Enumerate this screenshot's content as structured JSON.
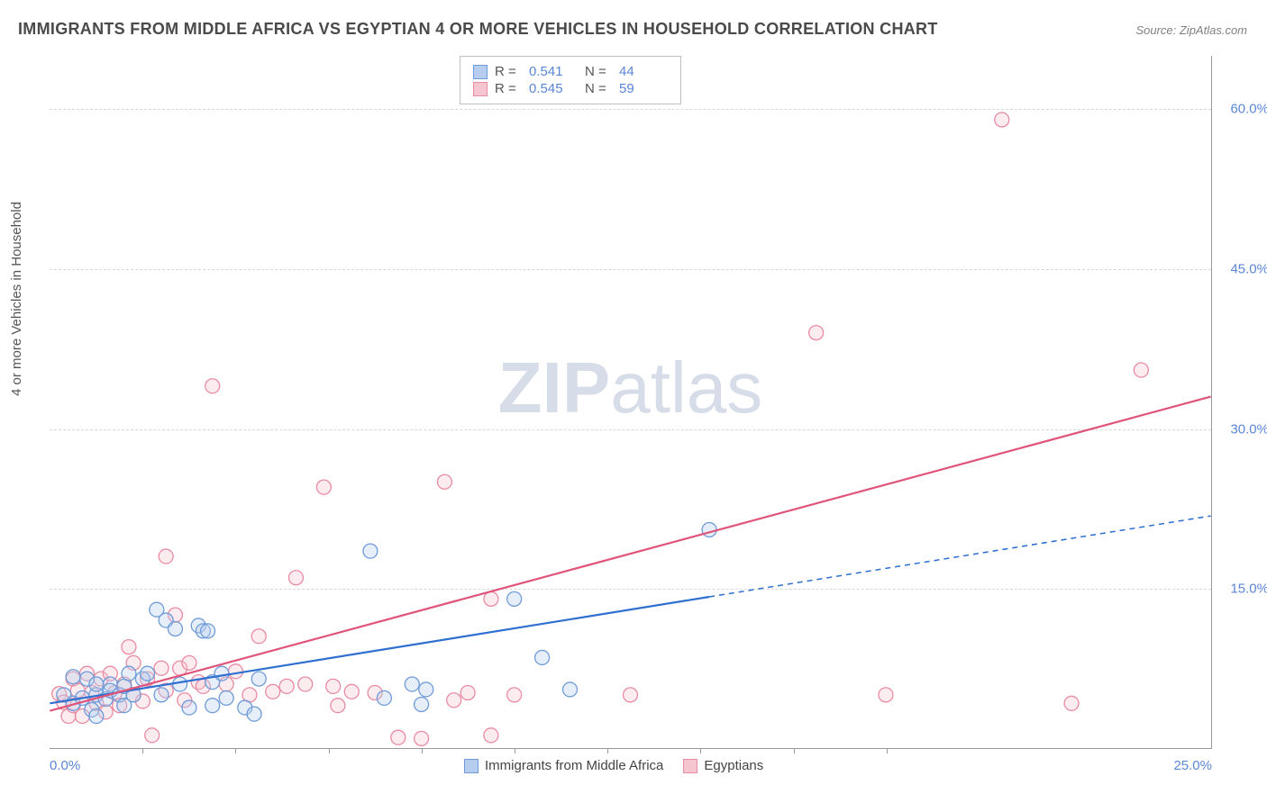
{
  "title": "IMMIGRANTS FROM MIDDLE AFRICA VS EGYPTIAN 4 OR MORE VEHICLES IN HOUSEHOLD CORRELATION CHART",
  "source": "Source: ZipAtlas.com",
  "watermark": {
    "zip": "ZIP",
    "atlas": "atlas"
  },
  "chart": {
    "type": "scatter-with-regression",
    "background_color": "#ffffff",
    "grid_color": "#d8d8d8",
    "axis_color": "#999999",
    "tick_label_color": "#5a87d6",
    "axis_title_color": "#555555",
    "axis_title_fontsize": 15,
    "tick_label_fontsize": 15,
    "xlim": [
      0,
      25
    ],
    "ylim": [
      0,
      65
    ],
    "x_ticks": [
      0.0,
      25.0
    ],
    "x_tick_labels": [
      "0.0%",
      "25.0%"
    ],
    "x_minor_ticks": [
      2,
      4,
      6,
      8,
      10,
      12,
      14,
      16,
      18
    ],
    "y_ticks": [
      15.0,
      30.0,
      45.0,
      60.0
    ],
    "y_tick_labels": [
      "15.0%",
      "30.0%",
      "45.0%",
      "60.0%"
    ],
    "y_gridlines_dashed": true,
    "y_axis_title": "4 or more Vehicles in Household",
    "marker_radius": 8,
    "marker_fill_opacity": 0.35,
    "marker_stroke_width": 1.3,
    "series": [
      {
        "name": "Immigrants from Middle Africa",
        "color_fill": "#b7cdef",
        "color_stroke": "#6f9bd8",
        "legend_swatch_fill": "#b7cdef",
        "legend_swatch_stroke": "#6f9bd8",
        "R": "0.541",
        "N": "44",
        "regression": {
          "x1": 0,
          "y1": 4.2,
          "x2_solid": 14.2,
          "y2_solid": 14.2,
          "x2_dash": 25.0,
          "y2_dash": 21.8,
          "color": "#2e6fd0",
          "solid_width": 2.2,
          "dash_pattern": "6,5"
        },
        "points": [
          {
            "x": 0.3,
            "y": 5.0
          },
          {
            "x": 0.5,
            "y": 4.2
          },
          {
            "x": 0.5,
            "y": 6.7
          },
          {
            "x": 0.7,
            "y": 4.7
          },
          {
            "x": 0.8,
            "y": 6.5
          },
          {
            "x": 0.9,
            "y": 3.6
          },
          {
            "x": 1.0,
            "y": 5.0
          },
          {
            "x": 1.0,
            "y": 6.0
          },
          {
            "x": 1.0,
            "y": 3.0
          },
          {
            "x": 1.2,
            "y": 4.6
          },
          {
            "x": 1.3,
            "y": 6.0
          },
          {
            "x": 1.3,
            "y": 5.4
          },
          {
            "x": 1.5,
            "y": 5.0
          },
          {
            "x": 1.6,
            "y": 5.8
          },
          {
            "x": 1.6,
            "y": 4.0
          },
          {
            "x": 1.7,
            "y": 7.0
          },
          {
            "x": 1.8,
            "y": 5.0
          },
          {
            "x": 2.0,
            "y": 6.5
          },
          {
            "x": 2.1,
            "y": 7.0
          },
          {
            "x": 2.3,
            "y": 13.0
          },
          {
            "x": 2.4,
            "y": 5.0
          },
          {
            "x": 2.5,
            "y": 12.0
          },
          {
            "x": 2.7,
            "y": 11.2
          },
          {
            "x": 2.8,
            "y": 6.0
          },
          {
            "x": 3.0,
            "y": 3.8
          },
          {
            "x": 3.2,
            "y": 11.5
          },
          {
            "x": 3.3,
            "y": 11.0
          },
          {
            "x": 3.4,
            "y": 11.0
          },
          {
            "x": 3.5,
            "y": 6.2
          },
          {
            "x": 3.5,
            "y": 4.0
          },
          {
            "x": 3.7,
            "y": 7.0
          },
          {
            "x": 3.8,
            "y": 4.7
          },
          {
            "x": 4.2,
            "y": 3.8
          },
          {
            "x": 4.4,
            "y": 3.2
          },
          {
            "x": 4.5,
            "y": 6.5
          },
          {
            "x": 6.9,
            "y": 18.5
          },
          {
            "x": 7.2,
            "y": 4.7
          },
          {
            "x": 7.8,
            "y": 6.0
          },
          {
            "x": 8.0,
            "y": 4.1
          },
          {
            "x": 8.1,
            "y": 5.5
          },
          {
            "x": 10.0,
            "y": 14.0
          },
          {
            "x": 10.6,
            "y": 8.5
          },
          {
            "x": 11.2,
            "y": 5.5
          },
          {
            "x": 14.2,
            "y": 20.5
          }
        ]
      },
      {
        "name": "Egyptians",
        "color_fill": "#f5c6d0",
        "color_stroke": "#e98ba3",
        "legend_swatch_fill": "#f5c6d0",
        "legend_swatch_stroke": "#e98ba3",
        "R": "0.545",
        "N": "59",
        "regression": {
          "x1": 0,
          "y1": 3.5,
          "x2_solid": 25.0,
          "y2_solid": 33.0,
          "color": "#e0547a",
          "solid_width": 2.2
        },
        "points": [
          {
            "x": 0.2,
            "y": 5.1
          },
          {
            "x": 0.3,
            "y": 4.3
          },
          {
            "x": 0.4,
            "y": 3.0
          },
          {
            "x": 0.5,
            "y": 6.5
          },
          {
            "x": 0.5,
            "y": 4.0
          },
          {
            "x": 0.6,
            "y": 5.4
          },
          {
            "x": 0.7,
            "y": 3.0
          },
          {
            "x": 0.8,
            "y": 7.0
          },
          {
            "x": 0.9,
            "y": 5.2
          },
          {
            "x": 1.0,
            "y": 4.2
          },
          {
            "x": 1.1,
            "y": 6.5
          },
          {
            "x": 1.2,
            "y": 3.4
          },
          {
            "x": 1.3,
            "y": 7.0
          },
          {
            "x": 1.4,
            "y": 5.2
          },
          {
            "x": 1.5,
            "y": 4.0
          },
          {
            "x": 1.6,
            "y": 6.0
          },
          {
            "x": 1.7,
            "y": 9.5
          },
          {
            "x": 1.8,
            "y": 5.0
          },
          {
            "x": 1.8,
            "y": 8.0
          },
          {
            "x": 2.0,
            "y": 4.4
          },
          {
            "x": 2.1,
            "y": 6.5
          },
          {
            "x": 2.2,
            "y": 1.2
          },
          {
            "x": 2.4,
            "y": 7.5
          },
          {
            "x": 2.5,
            "y": 5.4
          },
          {
            "x": 2.5,
            "y": 18.0
          },
          {
            "x": 2.7,
            "y": 12.5
          },
          {
            "x": 2.8,
            "y": 7.5
          },
          {
            "x": 2.9,
            "y": 4.5
          },
          {
            "x": 3.0,
            "y": 8.0
          },
          {
            "x": 3.2,
            "y": 6.2
          },
          {
            "x": 3.3,
            "y": 5.8
          },
          {
            "x": 3.5,
            "y": 34.0
          },
          {
            "x": 3.8,
            "y": 6.0
          },
          {
            "x": 4.0,
            "y": 7.2
          },
          {
            "x": 4.3,
            "y": 5.0
          },
          {
            "x": 4.5,
            "y": 10.5
          },
          {
            "x": 4.8,
            "y": 5.3
          },
          {
            "x": 5.1,
            "y": 5.8
          },
          {
            "x": 5.3,
            "y": 16.0
          },
          {
            "x": 5.5,
            "y": 6.0
          },
          {
            "x": 5.9,
            "y": 24.5
          },
          {
            "x": 6.1,
            "y": 5.8
          },
          {
            "x": 6.2,
            "y": 4.0
          },
          {
            "x": 6.5,
            "y": 5.3
          },
          {
            "x": 7.0,
            "y": 5.2
          },
          {
            "x": 7.5,
            "y": 1.0
          },
          {
            "x": 8.0,
            "y": 0.9
          },
          {
            "x": 8.5,
            "y": 25.0
          },
          {
            "x": 8.7,
            "y": 4.5
          },
          {
            "x": 9.0,
            "y": 5.2
          },
          {
            "x": 9.5,
            "y": 1.2
          },
          {
            "x": 9.5,
            "y": 14.0
          },
          {
            "x": 10.0,
            "y": 5.0
          },
          {
            "x": 12.5,
            "y": 5.0
          },
          {
            "x": 16.5,
            "y": 39.0
          },
          {
            "x": 18.0,
            "y": 5.0
          },
          {
            "x": 20.5,
            "y": 59.0
          },
          {
            "x": 22.0,
            "y": 4.2
          },
          {
            "x": 23.5,
            "y": 35.5
          }
        ]
      }
    ],
    "legend_bottom": [
      {
        "series_idx": 0
      },
      {
        "series_idx": 1
      }
    ]
  }
}
